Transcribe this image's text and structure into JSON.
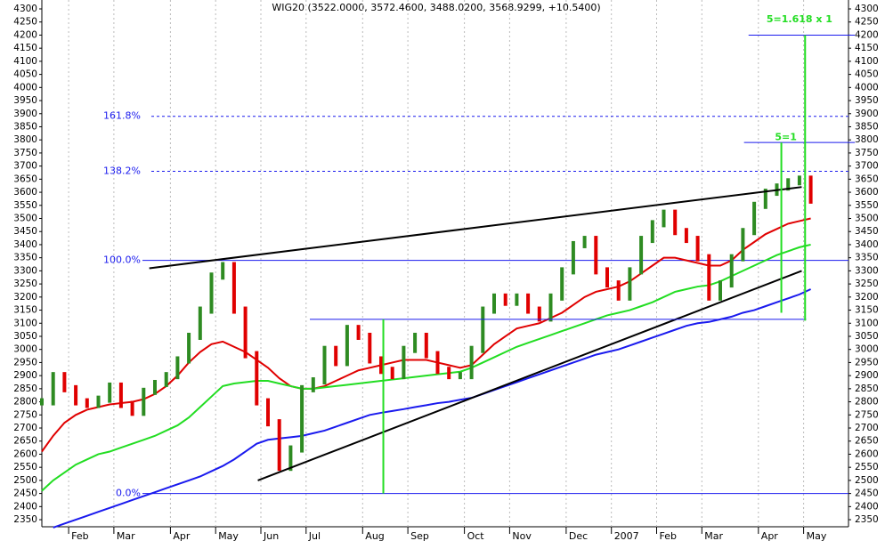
{
  "chart_data": {
    "type": "price",
    "title": "WIG20 (3522.0000, 3572.4600, 3488.0200, 3568.9299, +10.5400)",
    "categories": [
      null,
      null,
      null,
      "Feb",
      null,
      null,
      null,
      "Mar",
      null,
      null,
      null,
      null,
      "Apr",
      null,
      null,
      null,
      "May",
      null,
      null,
      null,
      "Jun",
      null,
      null,
      null,
      "Jul",
      null,
      null,
      null,
      null,
      "Aug",
      null,
      null,
      null,
      "Sep",
      null,
      null,
      null,
      null,
      "Oct",
      null,
      null,
      null,
      "Nov",
      null,
      null,
      null,
      null,
      "Dec",
      null,
      null,
      null,
      "2007",
      null,
      null,
      null,
      "Feb",
      null,
      null,
      null,
      "Mar",
      null,
      null,
      null,
      null,
      "Apr",
      null,
      null,
      null,
      "May"
    ],
    "close": {
      "up_color": "#2e8b22",
      "down_color": "#e00000",
      "values": [
        2800,
        2900,
        2850,
        2800,
        2790,
        2810,
        2860,
        2790,
        2760,
        2840,
        2870,
        2900,
        2960,
        3050,
        3150,
        3280,
        3320,
        3150,
        2980,
        2800,
        2720,
        2550,
        2620,
        2850,
        2880,
        3000,
        2950,
        3080,
        3050,
        2960,
        2920,
        2900,
        3000,
        3050,
        2980,
        2920,
        2900,
        2900,
        3000,
        3150,
        3200,
        3180,
        3200,
        3150,
        3120,
        3200,
        3300,
        3400,
        3420,
        3300,
        3250,
        3200,
        3300,
        3420,
        3480,
        3520,
        3450,
        3420,
        3350,
        3200,
        3250,
        3350,
        3450,
        3550,
        3600,
        3620,
        3640,
        3650,
        3570
      ]
    },
    "series": [
      {
        "color": "#e00000",
        "values": [
          2610,
          2670,
          2720,
          2750,
          2770,
          2780,
          2790,
          2795,
          2800,
          2810,
          2830,
          2860,
          2900,
          2950,
          2990,
          3020,
          3030,
          3010,
          2990,
          2960,
          2930,
          2890,
          2860,
          2850,
          2850,
          2860,
          2880,
          2900,
          2920,
          2930,
          2940,
          2950,
          2960,
          2960,
          2960,
          2950,
          2940,
          2930,
          2940,
          2980,
          3020,
          3050,
          3080,
          3090,
          3100,
          3120,
          3140,
          3170,
          3200,
          3220,
          3230,
          3240,
          3260,
          3290,
          3320,
          3350,
          3350,
          3340,
          3330,
          3320,
          3320,
          3340,
          3380,
          3410,
          3440,
          3460,
          3480,
          3490,
          3500
        ]
      },
      {
        "color": "#22dd22",
        "values": [
          2460,
          2500,
          2530,
          2560,
          2580,
          2600,
          2610,
          2625,
          2640,
          2655,
          2670,
          2690,
          2710,
          2740,
          2780,
          2820,
          2860,
          2870,
          2875,
          2880,
          2880,
          2870,
          2860,
          2850,
          2850,
          2855,
          2860,
          2865,
          2870,
          2875,
          2880,
          2885,
          2890,
          2895,
          2900,
          2905,
          2910,
          2915,
          2930,
          2950,
          2970,
          2990,
          3010,
          3025,
          3040,
          3055,
          3070,
          3085,
          3100,
          3115,
          3130,
          3140,
          3150,
          3165,
          3180,
          3200,
          3220,
          3230,
          3240,
          3245,
          3260,
          3280,
          3300,
          3320,
          3340,
          3360,
          3375,
          3390,
          3400
        ]
      },
      {
        "color": "#1a1aee",
        "values": [
          null,
          2320,
          2335,
          2350,
          2365,
          2380,
          2395,
          2410,
          2425,
          2440,
          2455,
          2470,
          2485,
          2500,
          2515,
          2535,
          2555,
          2580,
          2610,
          2640,
          2655,
          2660,
          2665,
          2670,
          2680,
          2690,
          2705,
          2720,
          2735,
          2750,
          2758,
          2765,
          2772,
          2780,
          2787,
          2795,
          2800,
          2808,
          2815,
          2830,
          2845,
          2860,
          2875,
          2890,
          2905,
          2920,
          2935,
          2950,
          2965,
          2980,
          2990,
          3000,
          3015,
          3030,
          3045,
          3060,
          3075,
          3090,
          3100,
          3105,
          3115,
          3125,
          3140,
          3150,
          3165,
          3180,
          3195,
          3210,
          3230
        ]
      }
    ],
    "levels": [
      {
        "value": 2450,
        "label": "0.0%",
        "dashed": false
      },
      {
        "value": 3340,
        "label": "100.0%",
        "dashed": false
      },
      {
        "value": 3680,
        "label": "138.2%",
        "dashed": true
      },
      {
        "value": 3890,
        "label": "161.8%",
        "dashed": true
      }
    ],
    "trendlines": [
      {
        "color": "#000000",
        "from": [
          9.5,
          3310
        ],
        "to": [
          67.2,
          3620
        ]
      },
      {
        "color": "#000000",
        "from": [
          19.1,
          2500
        ],
        "to": [
          67.2,
          3300
        ]
      },
      {
        "color": "#1a1aee",
        "from": [
          23.7,
          3115
        ],
        "to": [
          67.6,
          3115
        ]
      },
      {
        "color": "#1a1aee",
        "from": [
          62.1,
          3790
        ],
        "to": [
          71.9,
          3790
        ]
      },
      {
        "color": "#1a1aee",
        "from": [
          62.5,
          4200
        ],
        "to": [
          71.9,
          4200
        ]
      },
      {
        "color": "#22dd22",
        "from": [
          30.2,
          2450
        ],
        "to": [
          30.2,
          3115
        ]
      },
      {
        "color": "#22dd22",
        "from": [
          65.4,
          3140
        ],
        "to": [
          65.4,
          3790
        ]
      },
      {
        "color": "#22dd22",
        "from": [
          67.5,
          3110
        ],
        "to": [
          67.5,
          4200
        ]
      }
    ],
    "annotations": [
      {
        "text": "5=1",
        "at": [
          65.8,
          3810
        ],
        "color": "#22dd22"
      },
      {
        "text": "5=1.618 x 1",
        "at": [
          67.0,
          4260
        ],
        "color": "#22dd22"
      }
    ],
    "ylim": [
      2323,
      4334
    ],
    "yticks": [
      2350,
      2400,
      2450,
      2500,
      2550,
      2600,
      2650,
      2700,
      2750,
      2800,
      2850,
      2900,
      2950,
      3000,
      3050,
      3100,
      3150,
      3200,
      3250,
      3300,
      3350,
      3400,
      3450,
      3500,
      3550,
      3600,
      3650,
      3700,
      3750,
      3800,
      3850,
      3900,
      3950,
      4000,
      4050,
      4100,
      4150,
      4200,
      4250,
      4300
    ],
    "grid": true
  }
}
